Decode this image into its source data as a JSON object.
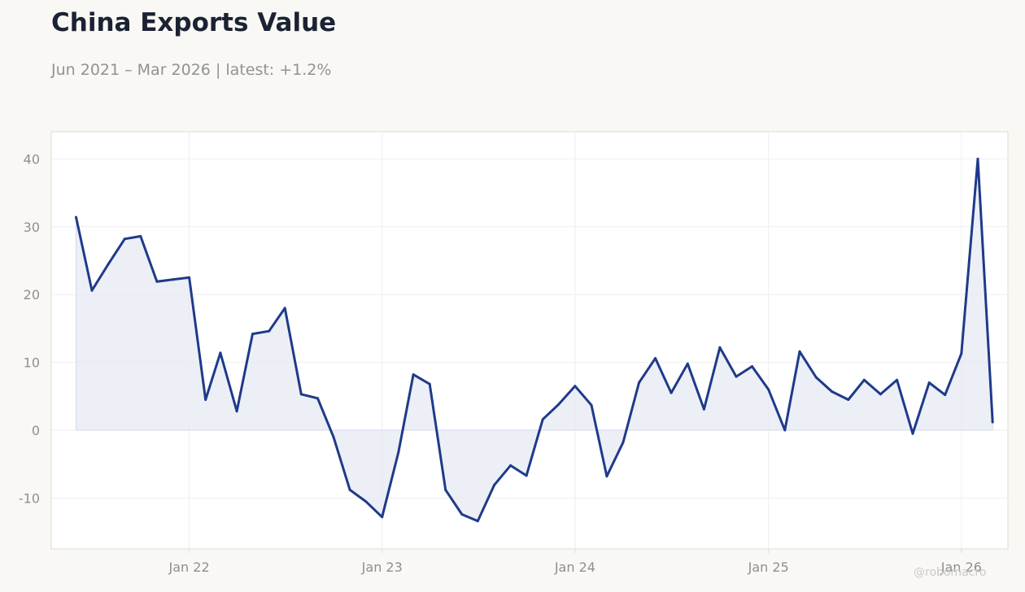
{
  "header": {
    "title": "China Exports Value",
    "subtitle": "Jun 2021 – Mar 2026 | latest: +1.2%"
  },
  "watermark": "@robomacro",
  "colors": {
    "line": "#1f3a8a",
    "fill": "#e6e9f3",
    "grid": "#eeeeee",
    "frame": "#dcdcd4",
    "background": "#f9f8f5",
    "plot_background": "#ffffff"
  },
  "chart_data": {
    "type": "area",
    "title": "China Exports Value",
    "subtitle": "Jun 2021 – Mar 2026 | latest: +1.2%",
    "xlabel": "",
    "ylabel": "",
    "ylim": [
      -17.5,
      44
    ],
    "xlim": [
      "2021-04-15",
      "2026-03-30"
    ],
    "grid": true,
    "legend": "none",
    "x_ticks": [
      {
        "date": "2022-01-01",
        "label": "Jan 22"
      },
      {
        "date": "2023-01-01",
        "label": "Jan 23"
      },
      {
        "date": "2024-01-01",
        "label": "Jan 24"
      },
      {
        "date": "2025-01-01",
        "label": "Jan 25"
      },
      {
        "date": "2026-01-01",
        "label": "Jan 26"
      }
    ],
    "y_ticks": [
      {
        "value": 40,
        "label": "40"
      },
      {
        "value": 30,
        "label": "30"
      },
      {
        "value": 20,
        "label": "20"
      },
      {
        "value": 10,
        "label": "10"
      },
      {
        "value": 0,
        "label": "0"
      },
      {
        "value": -10,
        "label": "-10"
      }
    ],
    "x": [
      "2021-06-01",
      "2021-07-01",
      "2021-08-01",
      "2021-09-01",
      "2021-10-01",
      "2021-11-01",
      "2021-12-01",
      "2022-01-01",
      "2022-02-01",
      "2022-03-01",
      "2022-04-01",
      "2022-05-01",
      "2022-06-01",
      "2022-07-01",
      "2022-08-01",
      "2022-09-01",
      "2022-10-01",
      "2022-11-01",
      "2022-12-01",
      "2023-01-01",
      "2023-02-01",
      "2023-03-01",
      "2023-04-01",
      "2023-05-01",
      "2023-06-01",
      "2023-07-01",
      "2023-08-01",
      "2023-09-01",
      "2023-10-01",
      "2023-11-01",
      "2023-12-01",
      "2024-01-01",
      "2024-02-01",
      "2024-03-01",
      "2024-04-01",
      "2024-05-01",
      "2024-06-01",
      "2024-07-01",
      "2024-08-01",
      "2024-09-01",
      "2024-10-01",
      "2024-11-01",
      "2024-12-01",
      "2025-01-01",
      "2025-02-01",
      "2025-03-01",
      "2025-04-01",
      "2025-05-01",
      "2025-06-01",
      "2025-07-01",
      "2025-08-01",
      "2025-09-01",
      "2025-10-01",
      "2025-11-01",
      "2025-12-01",
      "2026-01-01",
      "2026-02-01",
      "2026-03-01"
    ],
    "series": [
      {
        "values": [
          31.4,
          20.6,
          24.5,
          28.2,
          28.6,
          21.9,
          22.2,
          22.5,
          4.5,
          11.4,
          2.8,
          14.2,
          14.6,
          18.0,
          5.3,
          4.7,
          -1.0,
          -8.8,
          -10.5,
          -12.8,
          -3.2,
          8.2,
          6.8,
          -8.8,
          -12.4,
          -13.4,
          -8.1,
          -5.2,
          -6.7,
          1.6,
          3.8,
          6.5,
          3.7,
          -6.8,
          -1.8,
          7.0,
          10.6,
          5.5,
          9.8,
          3.1,
          12.2,
          7.9,
          9.4,
          6.0,
          0.0,
          11.6,
          7.8,
          5.7,
          4.5,
          7.4,
          5.3,
          7.4,
          -0.5,
          7.0,
          5.2,
          11.3,
          40.0,
          1.2
        ]
      }
    ]
  }
}
